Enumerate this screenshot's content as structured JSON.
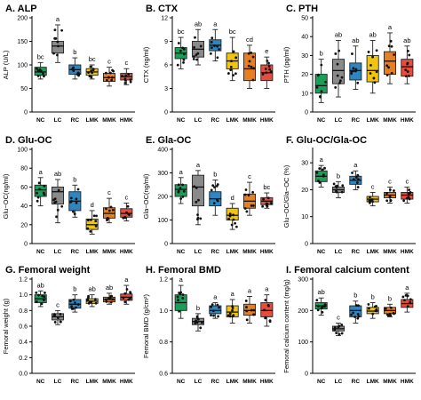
{
  "figure": {
    "groups": [
      "NC",
      "LC",
      "RC",
      "LMK",
      "MMK",
      "HMK"
    ]
  },
  "chart_data": [
    {
      "type": "box",
      "panel": "A.",
      "title": "ALP",
      "ylabel": "ALP (U/L)",
      "ylim": [
        0,
        200
      ],
      "yticks": [
        0,
        50,
        100,
        150,
        200
      ],
      "categories": [
        "NC",
        "LC",
        "RC",
        "LMK",
        "MMK",
        "HMK"
      ],
      "colors": [
        "#1b9e5a",
        "#8a8a8a",
        "#2e86c1",
        "#f1c40f",
        "#e67e22",
        "#e74c3c"
      ],
      "boxes": [
        [
          70,
          78,
          85,
          95,
          105
        ],
        [
          105,
          125,
          140,
          150,
          185
        ],
        [
          70,
          80,
          90,
          100,
          115
        ],
        [
          70,
          78,
          85,
          92,
          100
        ],
        [
          55,
          65,
          73,
          82,
          95
        ],
        [
          58,
          68,
          75,
          82,
          92
        ]
      ],
      "letters": [
        "bc",
        "a",
        "b",
        "bc",
        "c",
        "c"
      ]
    },
    {
      "type": "box",
      "panel": "B.",
      "title": "CTX",
      "ylabel": "CTX (ng/ml)",
      "ylim": [
        0,
        12
      ],
      "yticks": [
        0,
        3,
        6,
        9,
        12
      ],
      "categories": [
        "NC",
        "LC",
        "RC",
        "LMK",
        "MMK",
        "HMK"
      ],
      "colors": [
        "#1b9e5a",
        "#8a8a8a",
        "#2e86c1",
        "#f1c40f",
        "#e67e22",
        "#e74c3c"
      ],
      "boxes": [
        [
          5.5,
          6.8,
          7.5,
          8.2,
          9.5
        ],
        [
          6,
          7,
          8,
          9,
          10.5
        ],
        [
          6.5,
          7.8,
          8.5,
          9.2,
          10.5
        ],
        [
          4,
          5.5,
          6.5,
          7.5,
          9.5
        ],
        [
          3,
          4,
          5.5,
          7.5,
          8.5
        ],
        [
          3,
          4,
          5,
          6,
          7
        ]
      ],
      "letters": [
        "bc",
        "ab",
        "a",
        "bc",
        "cd",
        "e"
      ]
    },
    {
      "type": "box",
      "panel": "C.",
      "title": "PTH",
      "ylabel": "PTH (pg/ml)",
      "ylim": [
        0,
        50
      ],
      "yticks": [
        0,
        10,
        20,
        30,
        40,
        50
      ],
      "categories": [
        "NC",
        "LC",
        "RC",
        "LMK",
        "MMK",
        "HMK"
      ],
      "colors": [
        "#1b9e5a",
        "#8a8a8a",
        "#2e86c1",
        "#f1c40f",
        "#e67e22",
        "#e74c3c"
      ],
      "boxes": [
        [
          5,
          10,
          14,
          20,
          28
        ],
        [
          8,
          15,
          22,
          28,
          38
        ],
        [
          12,
          17,
          22,
          26,
          35
        ],
        [
          10,
          16,
          22,
          30,
          38
        ],
        [
          15,
          20,
          27,
          32,
          42
        ],
        [
          15,
          19,
          24,
          28,
          35
        ]
      ],
      "letters": [
        "b",
        "ab",
        "ab",
        "ab",
        "a",
        "ab"
      ]
    },
    {
      "type": "box",
      "panel": "D.",
      "title": "Glu-OC",
      "ylabel": "Glu−OC(ng/ml)",
      "ylim": [
        0,
        100
      ],
      "yticks": [
        0,
        20,
        40,
        60,
        80,
        100
      ],
      "categories": [
        "NC",
        "LC",
        "RC",
        "LMK",
        "MMK",
        "HMK"
      ],
      "colors": [
        "#1b9e5a",
        "#8a8a8a",
        "#2e86c1",
        "#f1c40f",
        "#e67e22",
        "#e74c3c"
      ],
      "boxes": [
        [
          40,
          50,
          57,
          62,
          70
        ],
        [
          22,
          42,
          55,
          60,
          68
        ],
        [
          28,
          35,
          45,
          55,
          62
        ],
        [
          10,
          15,
          20,
          26,
          35
        ],
        [
          22,
          27,
          32,
          38,
          48
        ],
        [
          24,
          28,
          32,
          37,
          43
        ]
      ],
      "letters": [
        "a",
        "ab",
        "b",
        "d",
        "c",
        "c"
      ]
    },
    {
      "type": "box",
      "panel": "E.",
      "title": "Gla-OC",
      "ylabel": "Gla−OC(ng/ml)",
      "ylim": [
        0,
        400
      ],
      "yticks": [
        0,
        100,
        200,
        300,
        400
      ],
      "categories": [
        "NC",
        "LC",
        "RC",
        "LMK",
        "MMK",
        "HMK"
      ],
      "colors": [
        "#1b9e5a",
        "#8a8a8a",
        "#2e86c1",
        "#f1c40f",
        "#e67e22",
        "#e74c3c"
      ],
      "boxes": [
        [
          170,
          200,
          230,
          250,
          280
        ],
        [
          80,
          160,
          240,
          290,
          310
        ],
        [
          120,
          160,
          190,
          220,
          270
        ],
        [
          60,
          100,
          120,
          150,
          170
        ],
        [
          120,
          150,
          180,
          210,
          260
        ],
        [
          150,
          165,
          180,
          195,
          215
        ]
      ],
      "letters": [
        "a",
        "a",
        "b",
        "d",
        "c",
        "bc"
      ]
    },
    {
      "type": "box",
      "panel": "F.",
      "title": "Glu-OC/Gla-OC",
      "ylabel": "Glu−OC/Gla−OC (%)",
      "ylim": [
        0,
        35
      ],
      "yticks": [
        0,
        10,
        20,
        30
      ],
      "categories": [
        "NC",
        "LC",
        "RC",
        "LMK",
        "MMK",
        "HMK"
      ],
      "colors": [
        "#1b9e5a",
        "#8a8a8a",
        "#2e86c1",
        "#f1c40f",
        "#e67e22",
        "#e74c3c"
      ],
      "boxes": [
        [
          21,
          23,
          25,
          27,
          29
        ],
        [
          17,
          19,
          20,
          21,
          23
        ],
        [
          20,
          22,
          23.5,
          25,
          27
        ],
        [
          14,
          15.5,
          16.5,
          17.5,
          19
        ],
        [
          15,
          17,
          18,
          19,
          21
        ],
        [
          15,
          16.5,
          18,
          19,
          21
        ]
      ],
      "letters": [
        "a",
        "b",
        "a",
        "c",
        "c",
        "c"
      ]
    },
    {
      "type": "box",
      "panel": "G.",
      "title": "Femoral weight",
      "ylabel": "Femoral weight (g)",
      "ylim": [
        0.0,
        1.2
      ],
      "yticks": [
        0.0,
        0.2,
        0.4,
        0.6,
        0.8,
        1.0,
        1.2
      ],
      "categories": [
        "NC",
        "LC",
        "RC",
        "LMK",
        "MMK",
        "HMK"
      ],
      "colors": [
        "#1b9e5a",
        "#8a8a8a",
        "#2e86c1",
        "#f1c40f",
        "#e67e22",
        "#e74c3c"
      ],
      "boxes": [
        [
          0.85,
          0.9,
          0.95,
          1.0,
          1.05
        ],
        [
          0.62,
          0.68,
          0.72,
          0.76,
          0.8
        ],
        [
          0.78,
          0.83,
          0.88,
          0.94,
          1.0
        ],
        [
          0.85,
          0.89,
          0.92,
          0.95,
          1.0
        ],
        [
          0.88,
          0.91,
          0.94,
          0.97,
          1.02
        ],
        [
          0.88,
          0.93,
          0.97,
          1.01,
          1.12
        ]
      ],
      "letters": [
        "ab",
        "c",
        "b",
        "ab",
        "ab",
        "a"
      ]
    },
    {
      "type": "box",
      "panel": "H.",
      "title": "Femoral BMD",
      "ylabel": "Femoral BMD (g/cm²)",
      "ylim": [
        0.6,
        1.2
      ],
      "yticks": [
        0.6,
        0.8,
        1.0,
        1.2
      ],
      "categories": [
        "NC",
        "LC",
        "RC",
        "LMK",
        "MMK",
        "HMK"
      ],
      "colors": [
        "#1b9e5a",
        "#8a8a8a",
        "#2e86c1",
        "#f1c40f",
        "#e67e22",
        "#e74c3c"
      ],
      "boxes": [
        [
          0.95,
          1.0,
          1.05,
          1.1,
          1.16
        ],
        [
          0.87,
          0.91,
          0.93,
          0.95,
          0.98
        ],
        [
          0.95,
          0.98,
          1.0,
          1.03,
          1.05
        ],
        [
          0.92,
          0.96,
          0.99,
          1.03,
          1.07
        ],
        [
          0.92,
          0.97,
          1.0,
          1.04,
          1.09
        ],
        [
          0.9,
          0.96,
          1.0,
          1.05,
          1.1
        ]
      ],
      "letters": [
        "a",
        "b",
        "a",
        "a",
        "a",
        "a"
      ]
    },
    {
      "type": "box",
      "panel": "I.",
      "title": "Femoral calcium content",
      "ylabel": "Femoral calcium content (mg/g)",
      "ylim": [
        0,
        300
      ],
      "yticks": [
        0,
        100,
        200,
        300
      ],
      "categories": [
        "NC",
        "LC",
        "RC",
        "LMK",
        "MMK",
        "HMK"
      ],
      "colors": [
        "#1b9e5a",
        "#8a8a8a",
        "#2e86c1",
        "#f1c40f",
        "#e67e22",
        "#e74c3c"
      ],
      "boxes": [
        [
          185,
          205,
          215,
          225,
          240
        ],
        [
          120,
          135,
          142,
          150,
          160
        ],
        [
          160,
          180,
          200,
          215,
          230
        ],
        [
          175,
          190,
          198,
          210,
          225
        ],
        [
          180,
          190,
          200,
          210,
          220
        ],
        [
          195,
          210,
          222,
          235,
          255
        ]
      ],
      "letters": [
        "ab",
        "c",
        "b",
        "b",
        "b",
        "a"
      ]
    }
  ]
}
